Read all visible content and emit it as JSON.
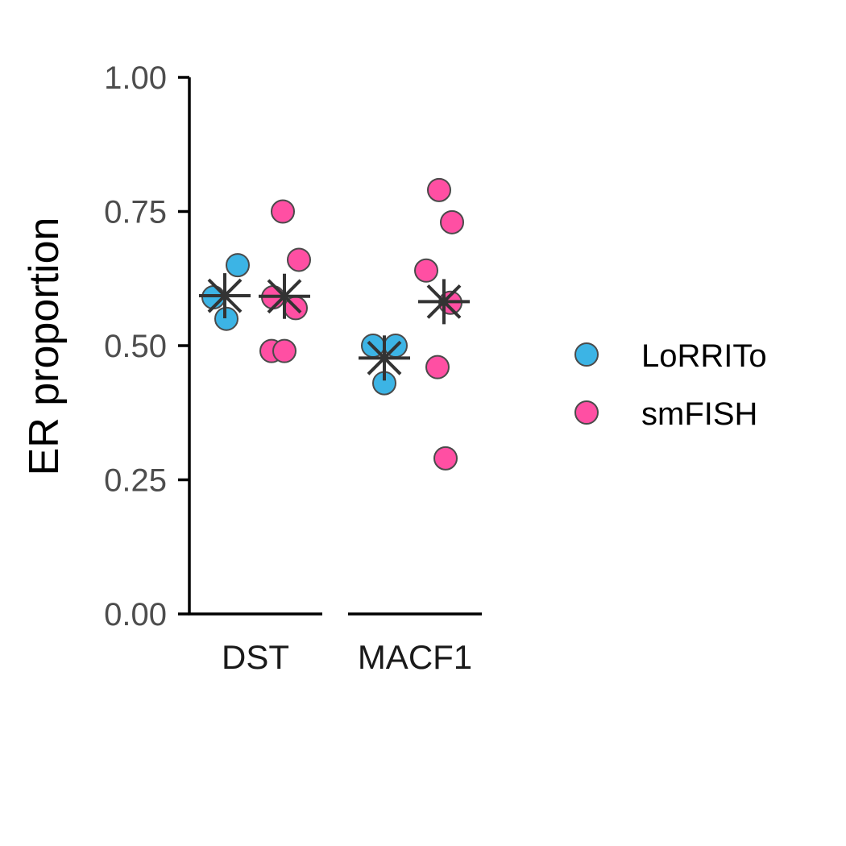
{
  "chart_data": {
    "type": "scatter",
    "ylabel": "ER proportion",
    "xlabel": "",
    "ylim": [
      0,
      1
    ],
    "yticks": [
      "0.00",
      "0.25",
      "0.50",
      "0.75",
      "1.00"
    ],
    "ytick_values": [
      0,
      0.25,
      0.5,
      0.75,
      1.0
    ],
    "categories": [
      "DST",
      "MACF1"
    ],
    "legend_placement": "right",
    "grid": false,
    "series": [
      {
        "name": "LoRRITo",
        "color": "#3CB4E5",
        "points": [
          {
            "category": "DST",
            "y": 0.59
          },
          {
            "category": "DST",
            "y": 0.65
          },
          {
            "category": "DST",
            "y": 0.55
          },
          {
            "category": "MACF1",
            "y": 0.5
          },
          {
            "category": "MACF1",
            "y": 0.5
          },
          {
            "category": "MACF1",
            "y": 0.43
          }
        ],
        "summary": [
          {
            "category": "DST",
            "y": 0.593
          },
          {
            "category": "MACF1",
            "y": 0.477
          }
        ]
      },
      {
        "name": "smFISH",
        "color": "#FF4FA3",
        "points": [
          {
            "category": "DST",
            "y": 0.75
          },
          {
            "category": "DST",
            "y": 0.66
          },
          {
            "category": "DST",
            "y": 0.59
          },
          {
            "category": "DST",
            "y": 0.57
          },
          {
            "category": "DST",
            "y": 0.49
          },
          {
            "category": "DST",
            "y": 0.49
          },
          {
            "category": "MACF1",
            "y": 0.79
          },
          {
            "category": "MACF1",
            "y": 0.73
          },
          {
            "category": "MACF1",
            "y": 0.64
          },
          {
            "category": "MACF1",
            "y": 0.58
          },
          {
            "category": "MACF1",
            "y": 0.46
          },
          {
            "category": "MACF1",
            "y": 0.29
          }
        ],
        "summary": [
          {
            "category": "DST",
            "y": 0.592
          },
          {
            "category": "MACF1",
            "y": 0.582
          }
        ]
      }
    ]
  }
}
